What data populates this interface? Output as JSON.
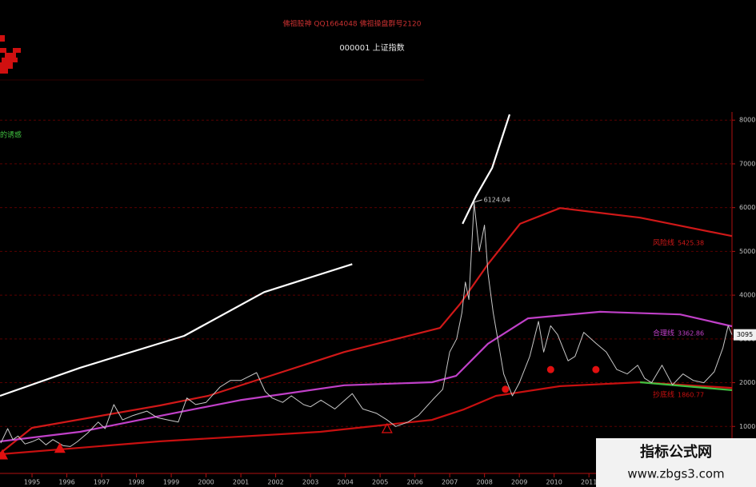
{
  "chart_data": {
    "type": "line",
    "title": "佛祖股神 QQ1664048 佛祖操盘群号2120",
    "subtitle": "000001 上证指数",
    "side_note": "的诱惑",
    "peak_label": "6124.04",
    "last_price_label": "3095",
    "watermark": {
      "title": "指标公式网",
      "url": "www.zbgs3.com"
    },
    "xlim": [
      1994.08,
      2015.11
    ],
    "xticks": [
      1995,
      1996,
      1997,
      1998,
      1999,
      2000,
      2001,
      2002,
      2003,
      2004,
      2005,
      2006,
      2007,
      2008,
      2009,
      2010,
      2011
    ],
    "ylim": [
      0,
      8150
    ],
    "yticks": [
      1000,
      2000,
      3000,
      4000,
      5000,
      6000,
      7000,
      8000
    ],
    "grid": true,
    "price": {
      "color": "#c8c8c8",
      "x": [
        1994.1,
        1994.3,
        1994.45,
        1994.6,
        1994.8,
        1995.0,
        1995.2,
        1995.4,
        1995.6,
        1995.9,
        1996.1,
        1996.3,
        1996.6,
        1996.9,
        1997.1,
        1997.35,
        1997.6,
        1997.9,
        1998.3,
        1998.6,
        1998.9,
        1999.2,
        1999.45,
        1999.7,
        2000.0,
        2000.4,
        2000.7,
        2001.0,
        2001.45,
        2001.7,
        2001.9,
        2002.2,
        2002.45,
        2002.8,
        2003.0,
        2003.3,
        2003.7,
        2004.2,
        2004.5,
        2004.9,
        2005.2,
        2005.45,
        2005.8,
        2006.1,
        2006.5,
        2006.8,
        2007.0,
        2007.2,
        2007.35,
        2007.45,
        2007.55,
        2007.7,
        2007.85,
        2008.0,
        2008.1,
        2008.25,
        2008.4,
        2008.55,
        2008.8,
        2009.0,
        2009.3,
        2009.55,
        2009.7,
        2009.9,
        2010.1,
        2010.4,
        2010.6,
        2010.85,
        2011.2,
        2011.5,
        2011.8,
        2012.1,
        2012.4,
        2012.6,
        2012.8,
        2013.1,
        2013.4,
        2013.7,
        2014.0,
        2014.3,
        2014.6,
        2014.85,
        2015.0,
        2015.11
      ],
      "values": [
        620,
        950,
        700,
        780,
        600,
        650,
        720,
        580,
        700,
        560,
        540,
        650,
        850,
        1100,
        950,
        1500,
        1150,
        1250,
        1350,
        1200,
        1150,
        1100,
        1650,
        1500,
        1550,
        1900,
        2050,
        2050,
        2230,
        1800,
        1650,
        1550,
        1700,
        1500,
        1450,
        1600,
        1400,
        1750,
        1400,
        1300,
        1150,
        1000,
        1100,
        1250,
        1600,
        1850,
        2700,
        3000,
        3600,
        4300,
        3900,
        6124,
        5000,
        5600,
        4500,
        3600,
        2900,
        2200,
        1700,
        2000,
        2600,
        3400,
        2700,
        3300,
        3100,
        2500,
        2600,
        3150,
        2900,
        2700,
        2300,
        2200,
        2400,
        2100,
        2000,
        2400,
        1950,
        2200,
        2050,
        2000,
        2250,
        2800,
        3300,
        3095
      ]
    },
    "series": [
      {
        "name": "风险线",
        "last_label": "5425.38",
        "color": "#d01818",
        "x": [
          1994.08,
          1995.0,
          1998.68,
          2000.06,
          2003.97,
          2006.72,
          2007.3,
          2008.1,
          2009.02,
          2010.17,
          2012.47,
          2015.11
        ],
        "values": [
          384,
          968,
          1480,
          1700,
          2700,
          3250,
          3800,
          4710,
          5630,
          5990,
          5770,
          5350
        ]
      },
      {
        "name": "合理线",
        "last_label": "3362.86",
        "color": "#c040c8",
        "x": [
          1994.08,
          1996.38,
          1998.68,
          2000.98,
          2003.97,
          2006.49,
          2007.18,
          2008.1,
          2009.25,
          2011.32,
          2013.62,
          2015.11
        ],
        "values": [
          658,
          877,
          1240,
          1600,
          1940,
          2010,
          2155,
          2890,
          3470,
          3620,
          3560,
          3290
        ]
      },
      {
        "name": "抄底线",
        "last_label": "1860.77",
        "color": "#c81010",
        "x": [
          1994.08,
          1998.68,
          2003.28,
          2006.49,
          2007.41,
          2008.33,
          2010.17,
          2012.47,
          2015.11
        ],
        "values": [
          365,
          660,
          877,
          1150,
          1390,
          1700,
          1920,
          2010,
          1880
        ]
      },
      {
        "color": "#40c040",
        "x": [
          2012.47,
          2013.62,
          2015.11
        ],
        "values": [
          2010,
          1930,
          1830
        ]
      },
      {
        "color": "#ffffff",
        "x": [
          1994.08,
          1996.38,
          1999.37,
          2001.67,
          2004.2
        ],
        "values": [
          1700,
          2340,
          3070,
          4070,
          4710
        ]
      },
      {
        "color": "#ffffff",
        "x": [
          2007.37,
          2007.76,
          2008.22,
          2008.72
        ],
        "values": [
          5630,
          6270,
          6910,
          8130
        ]
      }
    ],
    "triangle_signals": {
      "color": "#e01010",
      "x": [
        1994.15,
        1995.8
      ],
      "values": [
        350,
        500
      ]
    },
    "hollow_signals": {
      "color": "#e01010",
      "x": [
        2005.2
      ],
      "values": [
        950
      ]
    },
    "dot_signals": {
      "color": "#e01010",
      "x": [
        2008.6,
        2009.9,
        2011.2
      ],
      "values": [
        1850,
        2300,
        2300
      ]
    }
  }
}
